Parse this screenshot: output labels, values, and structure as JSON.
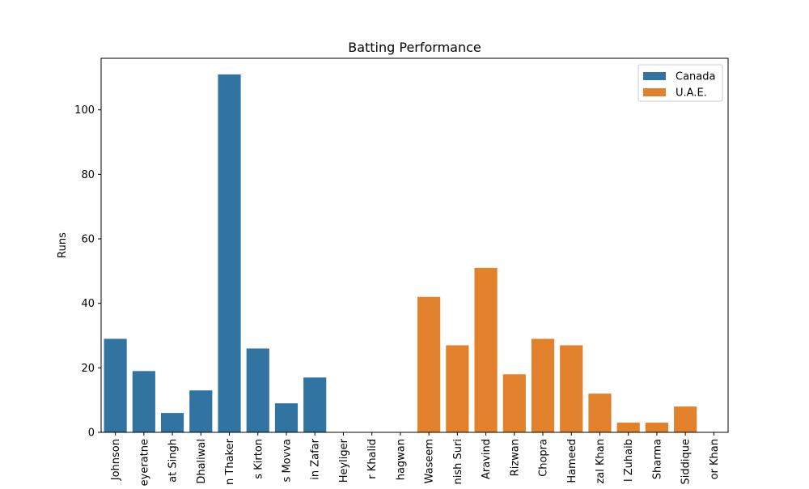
{
  "chart_data": {
    "type": "bar",
    "title": "Batting Performance",
    "xlabel": "",
    "ylabel": "Runs",
    "ylim": [
      0,
      116
    ],
    "yticks": [
      0,
      20,
      40,
      60,
      80,
      100
    ],
    "grid": false,
    "legend_position": "top-right",
    "categories": [
      "Johnson",
      "eyeratne",
      "at Singh",
      "Dhaliwal",
      "n Thaker",
      "s Kirton",
      "s Movva",
      "in Zafar",
      "Heyliger",
      "r Khalid",
      "hagwan",
      "Waseem",
      "nish Suri",
      "Aravind",
      "Rizwan",
      "Chopra",
      "Hameed",
      "zal Khan",
      "l Zuhaib",
      "Sharma",
      "Siddique",
      "or Khan"
    ],
    "series": [
      {
        "name": "Canada",
        "color": "#3274a1",
        "values": [
          29,
          19,
          6,
          13,
          111,
          26,
          9,
          17,
          0,
          0,
          0,
          null,
          null,
          null,
          null,
          null,
          null,
          null,
          null,
          null,
          null,
          null
        ]
      },
      {
        "name": "U.A.E.",
        "color": "#e1812c",
        "values": [
          null,
          null,
          null,
          null,
          null,
          null,
          null,
          null,
          null,
          null,
          null,
          42,
          27,
          51,
          18,
          29,
          27,
          12,
          3,
          3,
          8,
          0
        ]
      }
    ]
  }
}
